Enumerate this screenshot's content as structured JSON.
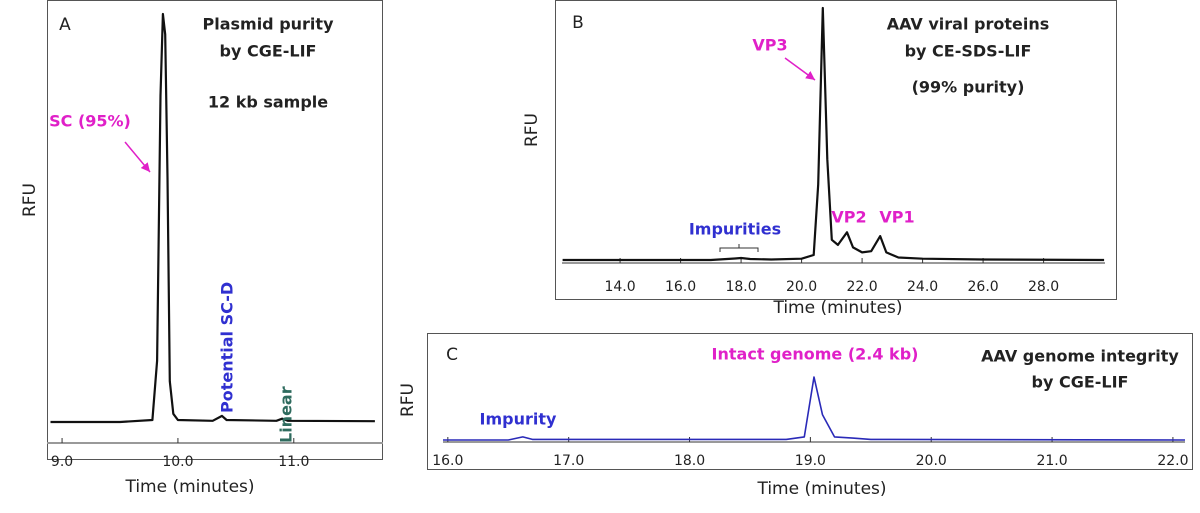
{
  "chart_data": [
    {
      "type": "line",
      "panel_label": "A",
      "title": [
        "Plasmid purity",
        "by CGE-LIF"
      ],
      "subtitle": "12 kb sample",
      "x_label": "Time (minutes)",
      "y_label": "RFU",
      "color": "#111111",
      "x": [
        8.9,
        9.5,
        9.78,
        9.82,
        9.85,
        9.87,
        9.89,
        9.91,
        9.93,
        9.96,
        10.0,
        10.3,
        10.38,
        10.42,
        10.85,
        10.9,
        10.95,
        11.7
      ],
      "values": [
        0,
        0,
        0.5,
        15,
        80,
        100,
        95,
        60,
        10,
        2,
        0.5,
        0.3,
        1.5,
        0.5,
        0.3,
        0.8,
        0.3,
        0.2
      ],
      "xlim": [
        8.87,
        11.77
      ],
      "ylim": [
        0,
        100
      ],
      "xticks": [
        {
          "value": 9,
          "label": "9.0"
        },
        {
          "value": 10,
          "label": "10.0"
        },
        {
          "value": 11,
          "label": "11.0"
        }
      ],
      "annotations": [
        {
          "text": "SC (95%)",
          "color": "#e020c8"
        },
        {
          "text": "Potential SC-D",
          "color": "#3030d0"
        },
        {
          "text": "Linear",
          "color": "#2e6b5e"
        }
      ]
    },
    {
      "type": "line",
      "panel_label": "B",
      "title": [
        "AAV viral proteins",
        "by CE-SDS-LIF"
      ],
      "subtitle": "(99% purity)",
      "x_label": "Time (minutes)",
      "y_label": "RFU",
      "color": "#111111",
      "x": [
        12.1,
        17.0,
        17.8,
        18.0,
        18.3,
        19.0,
        20.0,
        20.4,
        20.55,
        20.7,
        20.85,
        21.0,
        21.2,
        21.5,
        21.7,
        22.0,
        22.3,
        22.6,
        22.8,
        23.2,
        24.0,
        26.0,
        30.0
      ],
      "values": [
        0,
        0,
        0.6,
        0.8,
        0.4,
        0.2,
        0.5,
        2,
        30,
        100,
        40,
        8,
        6,
        11,
        5,
        3,
        3.5,
        9.5,
        3,
        1,
        0.5,
        0.2,
        0
      ],
      "xlim": [
        12.08,
        30.03
      ],
      "ylim": [
        0,
        100
      ],
      "xticks": [
        {
          "value": 14,
          "label": "14.0"
        },
        {
          "value": 16,
          "label": "16.0"
        },
        {
          "value": 18,
          "label": "18.0"
        },
        {
          "value": 20,
          "label": "20.0"
        },
        {
          "value": 22,
          "label": "22.0"
        },
        {
          "value": 24,
          "label": "24.0"
        },
        {
          "value": 26,
          "label": "26.0"
        },
        {
          "value": 28,
          "label": "28.0"
        }
      ],
      "annotations": [
        {
          "text": "VP3",
          "color": "#e020c8"
        },
        {
          "text": "VP2",
          "color": "#e020c8"
        },
        {
          "text": "VP1",
          "color": "#e020c8"
        },
        {
          "text": "Impurities",
          "color": "#3030d0"
        }
      ]
    },
    {
      "type": "line",
      "panel_label": "C",
      "title": [
        "AAV genome integrity",
        "by CGE-LIF"
      ],
      "x_label": "Time (minutes)",
      "y_label": "RFU",
      "color": "#2a2ab8",
      "x": [
        15.96,
        16.5,
        16.62,
        16.7,
        18.8,
        18.95,
        19.03,
        19.1,
        19.2,
        19.35,
        19.5,
        22.1
      ],
      "values": [
        0,
        0,
        5,
        1,
        1,
        5,
        100,
        40,
        5,
        3,
        1,
        0
      ],
      "xlim": [
        15.96,
        22.1
      ],
      "ylim": [
        0,
        100
      ],
      "xticks": [
        {
          "value": 16,
          "label": "16.0"
        },
        {
          "value": 17,
          "label": "17.0"
        },
        {
          "value": 18,
          "label": "18.0"
        },
        {
          "value": 19,
          "label": "19.0"
        },
        {
          "value": 20,
          "label": "20.0"
        },
        {
          "value": 21,
          "label": "21.0"
        },
        {
          "value": 22,
          "label": "22.0"
        }
      ],
      "annotations": [
        {
          "text": "Intact genome (2.4 kb)",
          "color": "#e020c8"
        },
        {
          "text": "Impurity",
          "color": "#3030d0"
        }
      ]
    }
  ]
}
